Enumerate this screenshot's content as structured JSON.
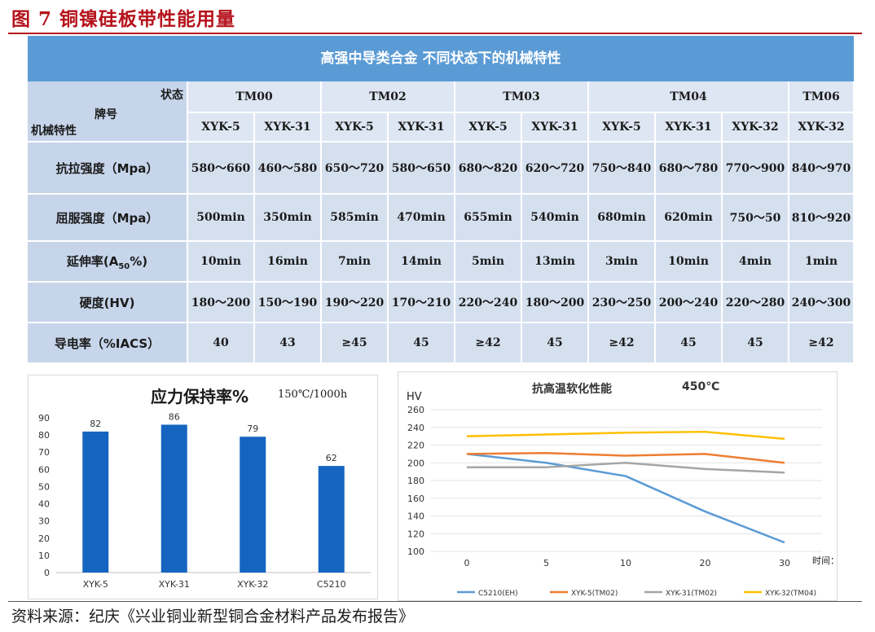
{
  "figure": {
    "title": "图 7  铜镍硅板带性能用量",
    "source": "资料来源：纪庆《兴业铜业新型铜合金材料产品发布报告》"
  },
  "table": {
    "banner": "高强中导类合金 不同状态下的机械特性",
    "corner": {
      "state": "状态",
      "brand": "牌号",
      "mech": "机械特性"
    },
    "states": [
      {
        "name": "TM00",
        "span": 2
      },
      {
        "name": "TM02",
        "span": 2
      },
      {
        "name": "TM03",
        "span": 2
      },
      {
        "name": "TM04",
        "span": 3
      },
      {
        "name": "TM06",
        "span": 1
      }
    ],
    "brands": [
      "XYK-5",
      "XYK-31",
      "XYK-5",
      "XYK-31",
      "XYK-5",
      "XYK-31",
      "XYK-5",
      "XYK-31",
      "XYK-32",
      "XYK-32"
    ],
    "rows": [
      {
        "label": "抗拉强度（Mpa）",
        "values": [
          "580～660",
          "460～580",
          "650～720",
          "580～650",
          "680～820",
          "620～720",
          "750～840",
          "680～780",
          "770～900",
          "840～970"
        ]
      },
      {
        "label": "屈服强度（Mpa）",
        "values": [
          "500min",
          "350min",
          "585min",
          "470min",
          "655min",
          "540min",
          "680min",
          "620min",
          "750～50",
          "810～920"
        ]
      },
      {
        "label": "延伸率(A50%)",
        "values": [
          "10min",
          "16min",
          "7min",
          "14min",
          "5min",
          "13min",
          "3min",
          "10min",
          "4min",
          "1min"
        ]
      },
      {
        "label": "硬度(HV)",
        "values": [
          "180～200",
          "150～190",
          "190～220",
          "170～210",
          "220～240",
          "180～200",
          "230～250",
          "200～240",
          "220～280",
          "240～300"
        ]
      },
      {
        "label": "导电率（%IACS）",
        "values": [
          "40",
          "43",
          "≥45",
          "45",
          "≥42",
          "45",
          "≥42",
          "45",
          "45",
          "≥42"
        ]
      }
    ]
  },
  "chart_data": [
    {
      "type": "bar",
      "title": "应力保持率%",
      "subtitle": "150℃/1000h",
      "categories": [
        "XYK-5",
        "XYK-31",
        "XYK-32",
        "C5210"
      ],
      "values": [
        82,
        86,
        79,
        62
      ],
      "ylim": [
        0,
        90
      ],
      "yticks": [
        0,
        10,
        20,
        30,
        40,
        50,
        60,
        70,
        80,
        90
      ],
      "color": "#1565c0",
      "grid": false
    },
    {
      "type": "line",
      "title": "抗高温软化性能",
      "subtitle": "450℃",
      "ylabel": "HV",
      "xlabel": "时间：min",
      "x": [
        0,
        5,
        10,
        20,
        30
      ],
      "ylim": [
        100,
        260
      ],
      "yticks": [
        100,
        120,
        140,
        160,
        180,
        200,
        220,
        240,
        260
      ],
      "grid": true,
      "legend": "bottom",
      "series": [
        {
          "name": "C5210(EH)",
          "color": "#5b9bd5",
          "values": [
            210,
            200,
            185,
            145,
            110
          ]
        },
        {
          "name": "XYK-5(TM02)",
          "color": "#ed7d31",
          "values": [
            210,
            211,
            208,
            210,
            200
          ]
        },
        {
          "name": "XYK-31(TM02)",
          "color": "#a5a5a5",
          "values": [
            195,
            195,
            200,
            193,
            189
          ]
        },
        {
          "name": "XYK-32(TM04)",
          "color": "#ffc000",
          "values": [
            230,
            232,
            234,
            235,
            227
          ]
        }
      ]
    }
  ]
}
